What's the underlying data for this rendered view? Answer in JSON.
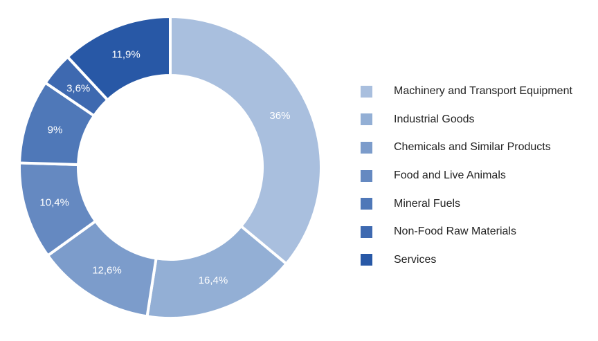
{
  "chart_data": {
    "type": "pie",
    "donut": true,
    "title": "",
    "legend_position": "right",
    "categories": [
      "Machinery and Transport Equipment",
      "Industrial Goods",
      "Chemicals and Similar Products",
      "Food and Live Animals",
      "Mineral Fuels",
      "Non-Food Raw Materials",
      "Services"
    ],
    "values": [
      36,
      16.4,
      12.6,
      10.4,
      9,
      3.6,
      11.9
    ],
    "value_labels": [
      "36%",
      "16,4%",
      "12,6%",
      "10,4%",
      "9%",
      "3,6%",
      "11,9%"
    ],
    "colors": [
      "#a9bfde",
      "#93afd5",
      "#7c9ccb",
      "#6589c1",
      "#4f78b8",
      "#3e69b0",
      "#2858a6"
    ]
  }
}
